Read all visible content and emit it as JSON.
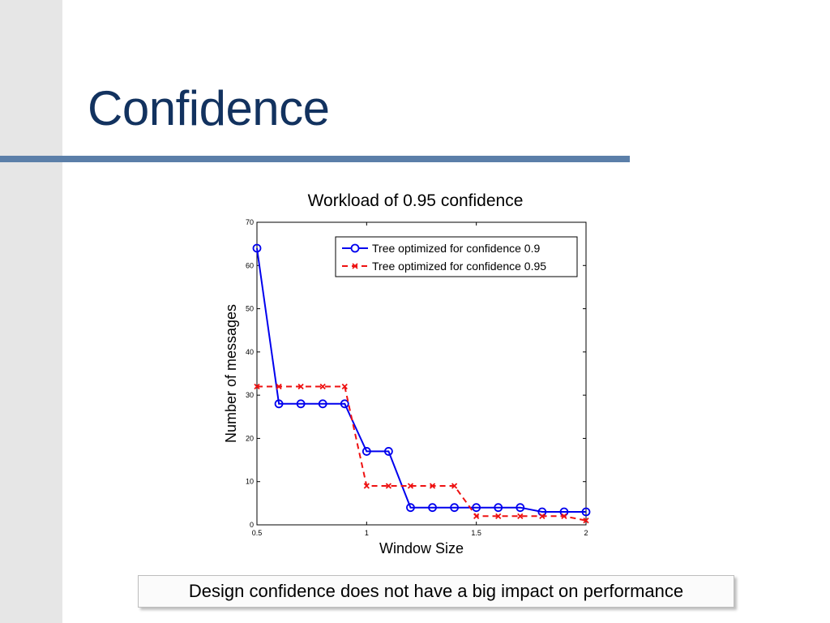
{
  "slide": {
    "title": "Confidence",
    "callout": "Design confidence does not have a big impact on performance"
  },
  "colors": {
    "title": "#12325f",
    "rule": "#5b7fa9",
    "series_blue": "#0000ee",
    "series_red": "#ee1111"
  },
  "chart_data": {
    "type": "line",
    "title": "Workload of 0.95 confidence",
    "xlabel": "Window Size",
    "ylabel": "Number of messages",
    "xlim": [
      0.5,
      2
    ],
    "ylim": [
      0,
      70
    ],
    "xticks": [
      0.5,
      1,
      1.5,
      2
    ],
    "yticks": [
      0,
      10,
      20,
      30,
      40,
      50,
      60,
      70
    ],
    "grid": false,
    "legend_position": "top-right",
    "x": [
      0.5,
      0.6,
      0.7,
      0.8,
      0.9,
      1.0,
      1.1,
      1.2,
      1.3,
      1.4,
      1.5,
      1.6,
      1.7,
      1.8,
      1.9,
      2.0
    ],
    "series": [
      {
        "name": "Tree optimized for confidence 0.9",
        "marker": "circle",
        "line_style": "solid",
        "color": "#0000ee",
        "values": [
          64,
          28,
          28,
          28,
          28,
          17,
          17,
          4,
          4,
          4,
          4,
          4,
          4,
          3,
          3,
          3
        ]
      },
      {
        "name": "Tree optimized for confidence 0.95",
        "marker": "x",
        "line_style": "dashed",
        "color": "#ee1111",
        "values": [
          32,
          32,
          32,
          32,
          32,
          9,
          9,
          9,
          9,
          9,
          2,
          2,
          2,
          2,
          2,
          1
        ]
      }
    ]
  }
}
